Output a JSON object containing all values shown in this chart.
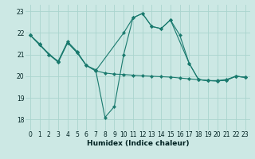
{
  "xlabel": "Humidex (Indice chaleur)",
  "bg_color": "#cce8e4",
  "grid_color": "#aad4ce",
  "line_color": "#1a7a6e",
  "xlim": [
    -0.5,
    23.5
  ],
  "ylim": [
    17.5,
    23.3
  ],
  "xticks": [
    0,
    1,
    2,
    3,
    4,
    5,
    6,
    7,
    8,
    9,
    10,
    11,
    12,
    13,
    14,
    15,
    16,
    17,
    18,
    19,
    20,
    21,
    22,
    23
  ],
  "yticks": [
    18,
    19,
    20,
    21,
    22,
    23
  ],
  "series1_x": [
    0,
    1,
    2,
    3,
    4,
    5,
    6,
    7,
    8,
    9,
    10,
    11,
    12,
    13,
    14,
    15,
    16,
    17,
    18,
    19,
    20,
    21,
    22,
    23
  ],
  "series1_y": [
    21.9,
    21.5,
    21.0,
    20.7,
    21.6,
    21.15,
    20.5,
    20.3,
    18.1,
    18.6,
    21.0,
    22.7,
    22.9,
    22.3,
    22.2,
    22.6,
    21.9,
    20.6,
    19.85,
    19.8,
    19.8,
    19.85,
    20.0,
    19.95
  ],
  "series2_x": [
    0,
    1,
    2,
    3,
    4,
    5,
    6,
    7,
    8,
    9,
    10,
    11,
    12,
    13,
    14,
    15,
    16,
    17,
    18,
    19,
    20,
    21,
    22,
    23
  ],
  "series2_y": [
    21.9,
    21.45,
    21.0,
    20.65,
    21.55,
    21.1,
    20.5,
    20.25,
    20.15,
    20.1,
    20.08,
    20.05,
    20.02,
    20.0,
    19.98,
    19.96,
    19.92,
    19.88,
    19.84,
    19.8,
    19.78,
    19.82,
    20.0,
    19.95
  ],
  "series3_x": [
    0,
    1,
    3,
    4,
    5,
    6,
    7,
    10,
    11,
    12,
    13,
    14,
    15,
    17,
    18,
    19,
    20,
    21,
    22,
    23
  ],
  "series3_y": [
    21.9,
    21.45,
    20.65,
    21.55,
    21.1,
    20.5,
    20.25,
    22.0,
    22.7,
    22.9,
    22.3,
    22.2,
    22.6,
    20.6,
    19.85,
    19.8,
    19.78,
    19.82,
    20.0,
    19.95
  ]
}
